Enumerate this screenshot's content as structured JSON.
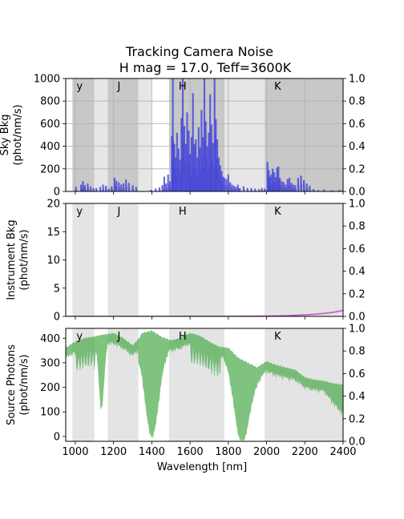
{
  "figure": {
    "title_line1": "Tracking Camera Noise",
    "title_line2": "H mag = 17.0, Teff=3600K",
    "xlabel": "Wavelength [nm]"
  },
  "chart_data": [
    {
      "type": "bar",
      "name": "sky",
      "ylabel_line1": "Sky Bkg",
      "ylabel_line2": "(phot/nm/s)",
      "xlim": [
        950,
        2400
      ],
      "ylim": [
        0,
        1000
      ],
      "yticks": [
        0,
        200,
        400,
        600,
        800,
        1000
      ],
      "right_yticks": [
        "0.0",
        "0.2",
        "0.4",
        "0.6",
        "0.8",
        "1.0"
      ],
      "grid": true,
      "color": "#3a3ad8",
      "bands": [
        {
          "label": "y",
          "range": [
            985,
            1100
          ],
          "shade": "#c8c8c8"
        },
        {
          "label": "J",
          "range": [
            1170,
            1330
          ],
          "shade": "#c8c8c8"
        },
        {
          "label": "H",
          "range": [
            1490,
            1780
          ],
          "shade": "#c8c8c8"
        },
        {
          "label": "K",
          "range": [
            1990,
            2400
          ],
          "shade": "#c8c8c8"
        }
      ],
      "peaks": [
        [
          1003,
          40
        ],
        [
          1030,
          60
        ],
        [
          1040,
          90
        ],
        [
          1050,
          55
        ],
        [
          1065,
          70
        ],
        [
          1080,
          45
        ],
        [
          1095,
          30
        ],
        [
          1110,
          30
        ],
        [
          1130,
          40
        ],
        [
          1145,
          60
        ],
        [
          1160,
          50
        ],
        [
          1175,
          25
        ],
        [
          1190,
          45
        ],
        [
          1205,
          120
        ],
        [
          1215,
          95
        ],
        [
          1228,
          80
        ],
        [
          1240,
          60
        ],
        [
          1252,
          70
        ],
        [
          1265,
          105
        ],
        [
          1280,
          75
        ],
        [
          1300,
          55
        ],
        [
          1318,
          40
        ],
        [
          1395,
          15
        ],
        [
          1420,
          25
        ],
        [
          1440,
          35
        ],
        [
          1455,
          55
        ],
        [
          1465,
          130
        ],
        [
          1475,
          70
        ],
        [
          1485,
          150
        ],
        [
          1495,
          90
        ],
        [
          1505,
          490
        ],
        [
          1510,
          1000
        ],
        [
          1518,
          420
        ],
        [
          1525,
          300
        ],
        [
          1532,
          520
        ],
        [
          1540,
          380
        ],
        [
          1548,
          280
        ],
        [
          1555,
          650
        ],
        [
          1562,
          1000
        ],
        [
          1570,
          580
        ],
        [
          1578,
          420
        ],
        [
          1585,
          700
        ],
        [
          1593,
          540
        ],
        [
          1600,
          330
        ],
        [
          1608,
          480
        ],
        [
          1615,
          870
        ],
        [
          1623,
          420
        ],
        [
          1630,
          460
        ],
        [
          1638,
          300
        ],
        [
          1645,
          570
        ],
        [
          1652,
          390
        ],
        [
          1660,
          720
        ],
        [
          1668,
          480
        ],
        [
          1675,
          1000
        ],
        [
          1682,
          620
        ],
        [
          1690,
          400
        ],
        [
          1698,
          520
        ],
        [
          1705,
          860
        ],
        [
          1712,
          590
        ],
        [
          1720,
          430
        ],
        [
          1728,
          1000
        ],
        [
          1735,
          640
        ],
        [
          1742,
          460
        ],
        [
          1750,
          300
        ],
        [
          1758,
          230
        ],
        [
          1765,
          180
        ],
        [
          1772,
          130
        ],
        [
          1780,
          120
        ],
        [
          1790,
          110
        ],
        [
          1800,
          150
        ],
        [
          1810,
          80
        ],
        [
          1820,
          60
        ],
        [
          1830,
          50
        ],
        [
          1840,
          40
        ],
        [
          1850,
          60
        ],
        [
          1860,
          30
        ],
        [
          1880,
          45
        ],
        [
          1900,
          30
        ],
        [
          1920,
          30
        ],
        [
          1940,
          25
        ],
        [
          1960,
          20
        ],
        [
          1975,
          30
        ],
        [
          1990,
          25
        ],
        [
          2005,
          260
        ],
        [
          2012,
          190
        ],
        [
          2018,
          130
        ],
        [
          2025,
          150
        ],
        [
          2032,
          200
        ],
        [
          2040,
          170
        ],
        [
          2048,
          125
        ],
        [
          2055,
          210
        ],
        [
          2062,
          220
        ],
        [
          2070,
          120
        ],
        [
          2080,
          90
        ],
        [
          2090,
          80
        ],
        [
          2100,
          60
        ],
        [
          2110,
          110
        ],
        [
          2120,
          120
        ],
        [
          2130,
          75
        ],
        [
          2140,
          60
        ],
        [
          2150,
          55
        ],
        [
          2165,
          120
        ],
        [
          2180,
          140
        ],
        [
          2195,
          100
        ],
        [
          2210,
          70
        ],
        [
          2225,
          50
        ],
        [
          2245,
          20
        ],
        [
          2270,
          12
        ],
        [
          2300,
          18
        ],
        [
          2340,
          10
        ],
        [
          2380,
          12
        ],
        [
          2395,
          8
        ]
      ]
    },
    {
      "type": "line",
      "name": "instrument",
      "ylabel_line1": "Instrument Bkg",
      "ylabel_line2": "(phot/nm/s)",
      "xlim": [
        950,
        2400
      ],
      "ylim": [
        0,
        20
      ],
      "yticks": [
        0,
        5,
        10,
        15,
        20
      ],
      "right_yticks": [
        "0.0",
        "0.2",
        "0.4",
        "0.6",
        "0.8",
        "1.0"
      ],
      "grid": false,
      "color": "#c05ac8",
      "bands": [
        {
          "label": "y",
          "range": [
            985,
            1100
          ],
          "shade": "#e4e4e4"
        },
        {
          "label": "J",
          "range": [
            1170,
            1330
          ],
          "shade": "#e4e4e4"
        },
        {
          "label": "H",
          "range": [
            1490,
            1780
          ],
          "shade": "#e4e4e4"
        },
        {
          "label": "K",
          "range": [
            1990,
            2400
          ],
          "shade": "#e4e4e4"
        }
      ],
      "x": [
        950,
        1500,
        1800,
        1900,
        2000,
        2050,
        2100,
        2150,
        2200,
        2250,
        2300,
        2350,
        2400
      ],
      "y": [
        0,
        0,
        0.01,
        0.02,
        0.05,
        0.08,
        0.12,
        0.18,
        0.27,
        0.38,
        0.52,
        0.72,
        1.05
      ]
    },
    {
      "type": "area",
      "name": "source",
      "ylabel_line1": "Source Photons",
      "ylabel_line2": "(phot/nm/s)",
      "xlim": [
        950,
        2400
      ],
      "ylim": [
        -20,
        440
      ],
      "yticks": [
        0,
        100,
        200,
        300,
        400
      ],
      "right_yticks": [
        "0.0",
        "0.2",
        "0.4",
        "0.6",
        "0.8",
        "1.0"
      ],
      "grid": false,
      "color": "#4aaa4a",
      "bands": [
        {
          "label": "y",
          "range": [
            985,
            1100
          ],
          "shade": "#e4e4e4"
        },
        {
          "label": "J",
          "range": [
            1170,
            1330
          ],
          "shade": "#e4e4e4"
        },
        {
          "label": "H",
          "range": [
            1490,
            1780
          ],
          "shade": "#e4e4e4"
        },
        {
          "label": "K",
          "range": [
            1990,
            2400
          ],
          "shade": "#e4e4e4"
        }
      ],
      "envelope_x": [
        950,
        1000,
        1050,
        1100,
        1120,
        1160,
        1200,
        1250,
        1300,
        1330,
        1350,
        1400,
        1450,
        1500,
        1550,
        1600,
        1650,
        1700,
        1750,
        1800,
        1850,
        1900,
        1950,
        2000,
        2050,
        2100,
        2150,
        2200,
        2250,
        2300,
        2350,
        2400
      ],
      "envelope_y": [
        360,
        385,
        400,
        405,
        410,
        415,
        420,
        400,
        370,
        395,
        420,
        430,
        405,
        390,
        400,
        420,
        410,
        385,
        365,
        360,
        320,
        300,
        280,
        305,
        290,
        280,
        270,
        240,
        230,
        225,
        215,
        210
      ]
    }
  ]
}
